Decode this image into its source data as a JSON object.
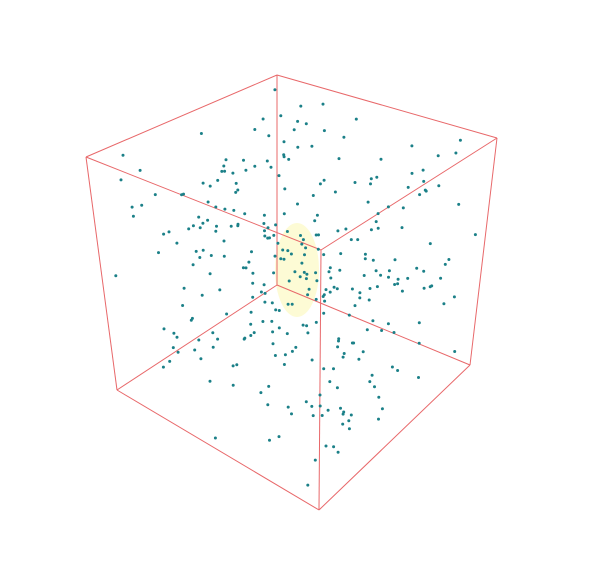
{
  "scene": {
    "edge_color": "#e8686a",
    "point_color": "#1b8088",
    "highlight_color": "#fdfbd0"
  }
}
